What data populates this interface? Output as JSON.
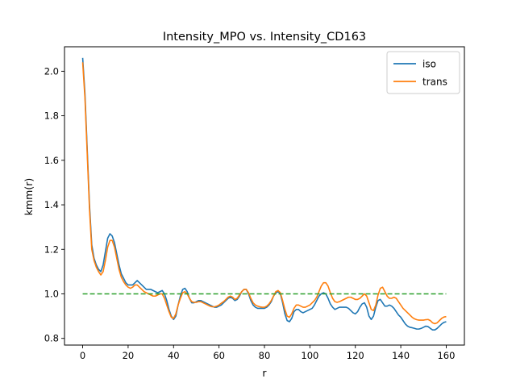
{
  "chart_data": {
    "type": "line",
    "title": "Intensity_MPO vs. Intensity_CD163",
    "xlabel": "r",
    "ylabel": "kmm(r)",
    "xlim": [
      -8,
      168
    ],
    "ylim": [
      0.77,
      2.11
    ],
    "xticks": [
      0,
      20,
      40,
      60,
      80,
      100,
      120,
      140,
      160
    ],
    "yticks": [
      0.8,
      1.0,
      1.2,
      1.4,
      1.6,
      1.8,
      2.0
    ],
    "ytick_labels": [
      "0.8",
      "1.0",
      "1.2",
      "1.4",
      "1.6",
      "1.8",
      "2.0"
    ],
    "legend_position": "top-right",
    "grid": false,
    "x": [
      0,
      1,
      2,
      3,
      4,
      5,
      6,
      7,
      8,
      9,
      10,
      11,
      12,
      13,
      14,
      15,
      16,
      17,
      18,
      19,
      20,
      21,
      22,
      23,
      24,
      25,
      26,
      27,
      28,
      29,
      30,
      31,
      32,
      33,
      34,
      35,
      36,
      37,
      38,
      39,
      40,
      41,
      42,
      43,
      44,
      45,
      46,
      47,
      48,
      49,
      50,
      51,
      52,
      53,
      54,
      55,
      56,
      57,
      58,
      59,
      60,
      61,
      62,
      63,
      64,
      65,
      66,
      67,
      68,
      69,
      70,
      71,
      72,
      73,
      74,
      75,
      76,
      77,
      78,
      79,
      80,
      81,
      82,
      83,
      84,
      85,
      86,
      87,
      88,
      89,
      90,
      91,
      92,
      93,
      94,
      95,
      96,
      97,
      98,
      99,
      100,
      101,
      102,
      103,
      104,
      105,
      106,
      107,
      108,
      109,
      110,
      111,
      112,
      113,
      114,
      115,
      116,
      117,
      118,
      119,
      120,
      121,
      122,
      123,
      124,
      125,
      126,
      127,
      128,
      129,
      130,
      131,
      132,
      133,
      134,
      135,
      136,
      137,
      138,
      139,
      140,
      141,
      142,
      143,
      144,
      145,
      146,
      147,
      148,
      149,
      150,
      151,
      152,
      153,
      154,
      155,
      156,
      157,
      158,
      159,
      160
    ],
    "series": [
      {
        "name": "iso",
        "color": "#1f77b4",
        "style": "solid",
        "values": [
          2.06,
          1.9,
          1.65,
          1.4,
          1.22,
          1.16,
          1.13,
          1.11,
          1.1,
          1.13,
          1.19,
          1.25,
          1.27,
          1.26,
          1.23,
          1.18,
          1.13,
          1.09,
          1.07,
          1.05,
          1.04,
          1.04,
          1.04,
          1.05,
          1.06,
          1.05,
          1.04,
          1.03,
          1.02,
          1.02,
          1.02,
          1.015,
          1.01,
          1.005,
          1.01,
          1.015,
          1.0,
          0.97,
          0.93,
          0.9,
          0.885,
          0.9,
          0.95,
          0.99,
          1.02,
          1.025,
          1.01,
          0.98,
          0.96,
          0.96,
          0.965,
          0.97,
          0.97,
          0.965,
          0.96,
          0.955,
          0.95,
          0.945,
          0.94,
          0.94,
          0.945,
          0.95,
          0.96,
          0.97,
          0.98,
          0.985,
          0.98,
          0.97,
          0.975,
          0.99,
          1.01,
          1.02,
          1.02,
          1.0,
          0.97,
          0.95,
          0.94,
          0.935,
          0.935,
          0.935,
          0.935,
          0.94,
          0.95,
          0.965,
          0.99,
          1.005,
          1.01,
          1.0,
          0.96,
          0.91,
          0.88,
          0.875,
          0.89,
          0.92,
          0.93,
          0.93,
          0.92,
          0.915,
          0.92,
          0.925,
          0.93,
          0.935,
          0.95,
          0.97,
          0.99,
          1.0,
          1.005,
          1.0,
          0.98,
          0.955,
          0.94,
          0.93,
          0.935,
          0.94,
          0.94,
          0.94,
          0.94,
          0.935,
          0.925,
          0.915,
          0.91,
          0.92,
          0.94,
          0.955,
          0.96,
          0.94,
          0.9,
          0.885,
          0.9,
          0.94,
          0.97,
          0.975,
          0.96,
          0.945,
          0.945,
          0.95,
          0.945,
          0.935,
          0.92,
          0.905,
          0.895,
          0.88,
          0.865,
          0.855,
          0.85,
          0.848,
          0.845,
          0.842,
          0.842,
          0.845,
          0.85,
          0.855,
          0.853,
          0.845,
          0.838,
          0.838,
          0.845,
          0.855,
          0.865,
          0.872,
          0.875
        ]
      },
      {
        "name": "trans",
        "color": "#ff7f0e",
        "style": "solid",
        "values": [
          2.04,
          1.88,
          1.63,
          1.38,
          1.2,
          1.15,
          1.12,
          1.1,
          1.085,
          1.1,
          1.15,
          1.21,
          1.24,
          1.24,
          1.21,
          1.16,
          1.11,
          1.075,
          1.055,
          1.04,
          1.03,
          1.025,
          1.03,
          1.04,
          1.04,
          1.03,
          1.02,
          1.01,
          1.005,
          1.0,
          0.995,
          0.99,
          0.99,
          0.995,
          1.0,
          1.0,
          0.98,
          0.95,
          0.92,
          0.895,
          0.89,
          0.91,
          0.95,
          0.98,
          1.005,
          1.01,
          1.0,
          0.98,
          0.965,
          0.962,
          0.962,
          0.965,
          0.965,
          0.96,
          0.955,
          0.95,
          0.945,
          0.942,
          0.942,
          0.945,
          0.95,
          0.958,
          0.965,
          0.975,
          0.985,
          0.99,
          0.985,
          0.975,
          0.98,
          0.995,
          1.01,
          1.02,
          1.02,
          1.005,
          0.98,
          0.96,
          0.95,
          0.945,
          0.942,
          0.94,
          0.94,
          0.945,
          0.955,
          0.97,
          0.99,
          1.01,
          1.015,
          1.005,
          0.97,
          0.93,
          0.9,
          0.895,
          0.91,
          0.935,
          0.95,
          0.95,
          0.945,
          0.94,
          0.94,
          0.945,
          0.95,
          0.96,
          0.97,
          0.985,
          1.01,
          1.035,
          1.05,
          1.05,
          1.035,
          1.005,
          0.98,
          0.965,
          0.962,
          0.965,
          0.97,
          0.975,
          0.98,
          0.985,
          0.985,
          0.98,
          0.975,
          0.975,
          0.98,
          0.99,
          1.0,
          0.99,
          0.96,
          0.93,
          0.925,
          0.95,
          0.995,
          1.025,
          1.03,
          1.01,
          0.99,
          0.98,
          0.98,
          0.985,
          0.98,
          0.965,
          0.95,
          0.935,
          0.925,
          0.915,
          0.905,
          0.895,
          0.888,
          0.884,
          0.882,
          0.882,
          0.882,
          0.884,
          0.885,
          0.88,
          0.87,
          0.866,
          0.87,
          0.88,
          0.89,
          0.896,
          0.898
        ]
      },
      {
        "name": "",
        "color": "#2ca02c",
        "style": "dashed",
        "values": [
          1.0,
          1.0,
          1.0,
          1.0,
          1.0,
          1.0,
          1.0,
          1.0,
          1.0,
          1.0,
          1.0,
          1.0,
          1.0,
          1.0,
          1.0,
          1.0,
          1.0,
          1.0,
          1.0,
          1.0,
          1.0,
          1.0,
          1.0,
          1.0,
          1.0,
          1.0,
          1.0,
          1.0,
          1.0,
          1.0,
          1.0,
          1.0,
          1.0,
          1.0,
          1.0,
          1.0,
          1.0,
          1.0,
          1.0,
          1.0,
          1.0,
          1.0,
          1.0,
          1.0,
          1.0,
          1.0,
          1.0,
          1.0,
          1.0,
          1.0,
          1.0,
          1.0,
          1.0,
          1.0,
          1.0,
          1.0,
          1.0,
          1.0,
          1.0,
          1.0,
          1.0,
          1.0,
          1.0,
          1.0,
          1.0,
          1.0,
          1.0,
          1.0,
          1.0,
          1.0,
          1.0,
          1.0,
          1.0,
          1.0,
          1.0,
          1.0,
          1.0,
          1.0,
          1.0,
          1.0,
          1.0,
          1.0,
          1.0,
          1.0,
          1.0,
          1.0,
          1.0,
          1.0,
          1.0,
          1.0,
          1.0,
          1.0,
          1.0,
          1.0,
          1.0,
          1.0,
          1.0,
          1.0,
          1.0,
          1.0,
          1.0,
          1.0,
          1.0,
          1.0,
          1.0,
          1.0,
          1.0,
          1.0,
          1.0,
          1.0,
          1.0,
          1.0,
          1.0,
          1.0,
          1.0,
          1.0,
          1.0,
          1.0,
          1.0,
          1.0,
          1.0,
          1.0,
          1.0,
          1.0,
          1.0,
          1.0,
          1.0,
          1.0,
          1.0,
          1.0,
          1.0,
          1.0,
          1.0,
          1.0,
          1.0,
          1.0,
          1.0,
          1.0,
          1.0,
          1.0,
          1.0,
          1.0,
          1.0,
          1.0,
          1.0,
          1.0,
          1.0,
          1.0,
          1.0,
          1.0,
          1.0,
          1.0,
          1.0,
          1.0,
          1.0,
          1.0,
          1.0,
          1.0,
          1.0,
          1.0,
          1.0
        ]
      }
    ]
  }
}
